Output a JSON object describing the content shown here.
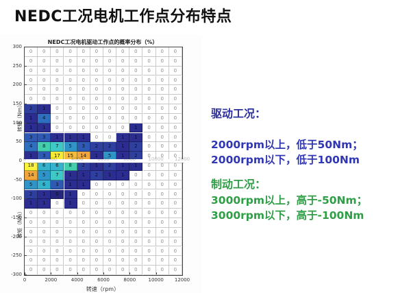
{
  "page_title": "NEDC工况电机工作点分布特点",
  "chart_data": {
    "type": "heatmap",
    "title": "NEDC工况电机驱动工作点的概率分布（%）",
    "xlabel": "转速（rpm）",
    "ylabel_top": "转矩（Nm）",
    "ylabel_bottom": "转矩（Nm）",
    "x_ticks": [
      "0",
      "2000",
      "4000",
      "6000",
      "8000",
      "10000",
      "12000"
    ],
    "y_ticks": [
      "300",
      "250",
      "200",
      "150",
      "100",
      "50",
      "0",
      "-50",
      "-100",
      "-150",
      "-200",
      "-250",
      "-300"
    ],
    "x_range_rpm": [
      0,
      12000
    ],
    "y_range_nm": [
      -300,
      300
    ],
    "cell_width_rpm": 1000,
    "cell_height_nm": 25,
    "zero_line_ghost_labels": [
      "0",
      "2000",
      "4000",
      "6000",
      "8000",
      "10000",
      "12000"
    ],
    "values": [
      [
        0,
        0,
        0,
        0,
        0,
        0,
        0,
        0,
        0,
        0,
        0,
        0
      ],
      [
        0,
        0,
        0,
        0,
        0,
        0,
        0,
        0,
        0,
        0,
        0,
        0
      ],
      [
        0,
        0,
        0,
        0,
        0,
        0,
        0,
        0,
        0,
        0,
        0,
        0
      ],
      [
        0,
        0,
        0,
        0,
        0,
        0,
        0,
        0,
        0,
        0,
        0,
        0
      ],
      [
        0,
        0,
        0,
        0,
        0,
        0,
        0,
        0,
        0,
        0,
        0,
        0
      ],
      [
        0,
        0,
        0,
        0,
        0,
        0,
        0,
        0,
        0,
        0,
        0,
        0
      ],
      [
        2,
        1,
        0,
        0,
        0,
        0,
        0,
        0,
        0,
        0,
        0,
        0
      ],
      [
        1,
        4,
        0,
        0,
        0,
        0,
        0,
        0,
        0,
        0,
        0,
        0
      ],
      [
        1,
        1,
        0,
        0,
        0,
        0,
        0,
        0,
        1,
        0,
        0,
        0
      ],
      [
        3,
        3,
        1,
        1,
        1,
        0,
        0,
        1,
        1,
        0,
        0,
        0
      ],
      [
        4,
        8,
        7,
        5,
        3,
        2,
        2,
        1,
        2,
        0,
        0,
        0
      ],
      [
        1,
        3,
        17,
        15,
        14,
        1,
        5,
        1,
        2,
        0,
        0,
        0
      ],
      [
        18,
        6,
        6,
        8,
        2,
        1,
        2,
        1,
        1,
        0,
        0,
        0
      ],
      [
        14,
        5,
        7,
        1,
        1,
        2,
        1,
        1,
        0,
        0,
        0,
        0
      ],
      [
        5,
        6,
        3,
        1,
        1,
        0,
        0,
        0,
        0,
        0,
        0,
        0
      ],
      [
        2,
        1,
        0,
        1,
        0,
        0,
        0,
        0,
        0,
        0,
        0,
        0
      ],
      [
        1,
        1,
        0,
        1,
        0,
        0,
        0,
        0,
        0,
        0,
        0,
        0
      ],
      [
        0,
        0,
        0,
        0,
        0,
        0,
        0,
        0,
        0,
        0,
        0,
        0
      ],
      [
        0,
        0,
        0,
        0,
        0,
        0,
        0,
        0,
        0,
        0,
        0,
        0
      ],
      [
        0,
        0,
        0,
        0,
        0,
        0,
        0,
        0,
        0,
        0,
        0,
        0
      ],
      [
        0,
        0,
        0,
        0,
        0,
        0,
        0,
        0,
        0,
        0,
        0,
        0
      ],
      [
        0,
        0,
        0,
        0,
        0,
        0,
        0,
        0,
        0,
        0,
        0,
        0
      ],
      [
        0,
        0,
        0,
        0,
        0,
        0,
        0,
        0,
        0,
        0,
        0,
        0
      ],
      [
        0,
        0,
        0,
        0,
        0,
        0,
        0,
        0,
        0,
        0,
        0,
        0
      ]
    ],
    "colored_ranges": {
      "6": [
        [
          0,
          1
        ]
      ],
      "7": [
        [
          0,
          1
        ]
      ],
      "8": [
        [
          0,
          1
        ],
        [
          8,
          8
        ]
      ],
      "9": [
        [
          0,
          4
        ],
        [
          7,
          8
        ]
      ],
      "10": [
        [
          0,
          8
        ]
      ],
      "11": [
        [
          0,
          8
        ]
      ],
      "12": [
        [
          0,
          8
        ]
      ],
      "13": [
        [
          0,
          7
        ]
      ],
      "14": [
        [
          0,
          4
        ]
      ],
      "15": [
        [
          0,
          3
        ]
      ],
      "16": [
        [
          0,
          1
        ],
        [
          3,
          3
        ]
      ]
    },
    "colormap": {
      "0": "#26267e",
      "1": "#2b2d91",
      "2": "#2e3f9f",
      "3": "#2e59b5",
      "4": "#2f6fc0",
      "5": "#2f95c8",
      "6": "#36b3cc",
      "7": "#40c8c6",
      "8": "#43cfae",
      "14": "#f0a63c",
      "15": "#f4bc3a",
      "17": "#f7ea34",
      "18": "#faf33b"
    }
  },
  "annotations": {
    "driving": {
      "heading": "驱动工况：",
      "color": "#2b2f9e",
      "lines": [
        "2000rpm以上，低于50Nm；",
        "2000rpm以下，低于100Nm"
      ]
    },
    "braking": {
      "heading": "制动工况：",
      "color": "#2f9e46",
      "lines": [
        "3000rpm以上，高于-50Nm；",
        "3000rpm以下，高于-100Nm"
      ]
    }
  }
}
